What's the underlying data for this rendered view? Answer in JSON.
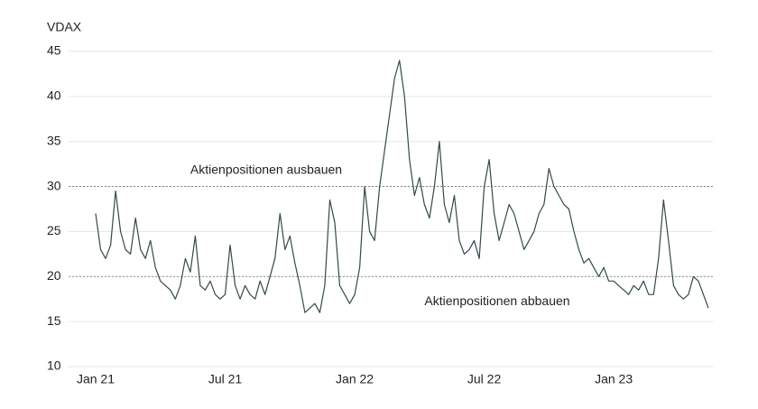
{
  "chart_data": {
    "type": "line",
    "y_label": "VDAX",
    "categories": [
      "Jan 21",
      null,
      null,
      null,
      null,
      null,
      null,
      null,
      null,
      null,
      null,
      null,
      null,
      null,
      null,
      null,
      null,
      null,
      null,
      null,
      null,
      null,
      null,
      null,
      null,
      null,
      "Jul 21",
      null,
      null,
      null,
      null,
      null,
      null,
      null,
      null,
      null,
      null,
      null,
      null,
      null,
      null,
      null,
      null,
      null,
      null,
      null,
      null,
      null,
      null,
      null,
      null,
      null,
      "Jan 22",
      null,
      null,
      null,
      null,
      null,
      null,
      null,
      null,
      null,
      null,
      null,
      null,
      null,
      null,
      null,
      null,
      null,
      null,
      null,
      null,
      null,
      null,
      null,
      null,
      null,
      "Jul 22",
      null,
      null,
      null,
      null,
      null,
      null,
      null,
      null,
      null,
      null,
      null,
      null,
      null,
      null,
      null,
      null,
      null,
      null,
      null,
      null,
      null,
      null,
      null,
      null,
      null,
      "Jan 23",
      null,
      null,
      null,
      null,
      null,
      null,
      null,
      null,
      null,
      null,
      null,
      null,
      null,
      null,
      null,
      null,
      null,
      null,
      null
    ],
    "series": [
      {
        "name": "VDAX",
        "color": "#33494a",
        "values": [
          27,
          23,
          22,
          23.5,
          29.5,
          25,
          23,
          22.5,
          26.5,
          23,
          22,
          24,
          21,
          19.5,
          19,
          18.5,
          17.5,
          19,
          22,
          20.5,
          24.5,
          19,
          18.5,
          19.5,
          18,
          17.5,
          18,
          23.5,
          19,
          17.5,
          19,
          18,
          17.5,
          19.5,
          18,
          20,
          22,
          27,
          23,
          24.5,
          21.5,
          19,
          16,
          16.5,
          17,
          16,
          19,
          28.5,
          26,
          19,
          18,
          17,
          18,
          21,
          30,
          25,
          24,
          30,
          34,
          38,
          42,
          44,
          40,
          33,
          29,
          31,
          28,
          26.5,
          30,
          35,
          28,
          26,
          29,
          24,
          22.5,
          23,
          24,
          22,
          30,
          33,
          27,
          24,
          26,
          28,
          27,
          25,
          23,
          24,
          25,
          27,
          28,
          32,
          30,
          29,
          28,
          27.5,
          25,
          23,
          21.5,
          22,
          21,
          20,
          21,
          19.5,
          19.5,
          19,
          18.5,
          18,
          19,
          18.5,
          19.5,
          18,
          18,
          22,
          28.5,
          24,
          19,
          18,
          17.5,
          18,
          20,
          19.5,
          18,
          16.5
        ]
      }
    ],
    "ylim": [
      10,
      45
    ],
    "yticks": [
      10,
      15,
      20,
      25,
      30,
      35,
      40,
      45
    ],
    "grid": true,
    "reference_lines": [
      {
        "value": 30,
        "label": "Aktienpositionen ausbauen"
      },
      {
        "value": 20,
        "label": "Aktienpositionen abbauen"
      }
    ]
  }
}
